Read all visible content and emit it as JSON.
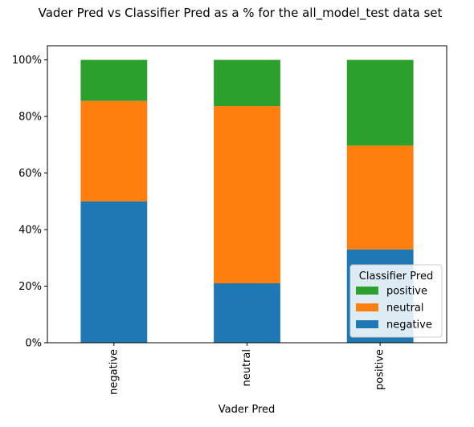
{
  "chart_data": {
    "type": "bar",
    "stacked": true,
    "title": "Vader Pred vs Classifier Pred as a % for the all_model_test data set",
    "xlabel": "Vader Pred",
    "ylabel": "",
    "categories": [
      "negative",
      "neutral",
      "positive"
    ],
    "series": [
      {
        "name": "negative",
        "color": "#1f77b4",
        "values": [
          50.0,
          21.0,
          33.0
        ]
      },
      {
        "name": "neutral",
        "color": "#ff7f0e",
        "values": [
          35.5,
          62.7,
          36.7
        ]
      },
      {
        "name": "positive",
        "color": "#2ca02c",
        "values": [
          14.5,
          16.3,
          30.3
        ]
      }
    ],
    "ylim": [
      0,
      105
    ],
    "yticks": [
      0,
      20,
      40,
      60,
      80,
      100
    ],
    "ytick_labels": [
      "0%",
      "20%",
      "40%",
      "60%",
      "80%",
      "100%"
    ],
    "grid": false,
    "legend": {
      "title": "Classifier Pred",
      "placement": "lower-right",
      "order": [
        "positive",
        "neutral",
        "negative"
      ]
    }
  }
}
